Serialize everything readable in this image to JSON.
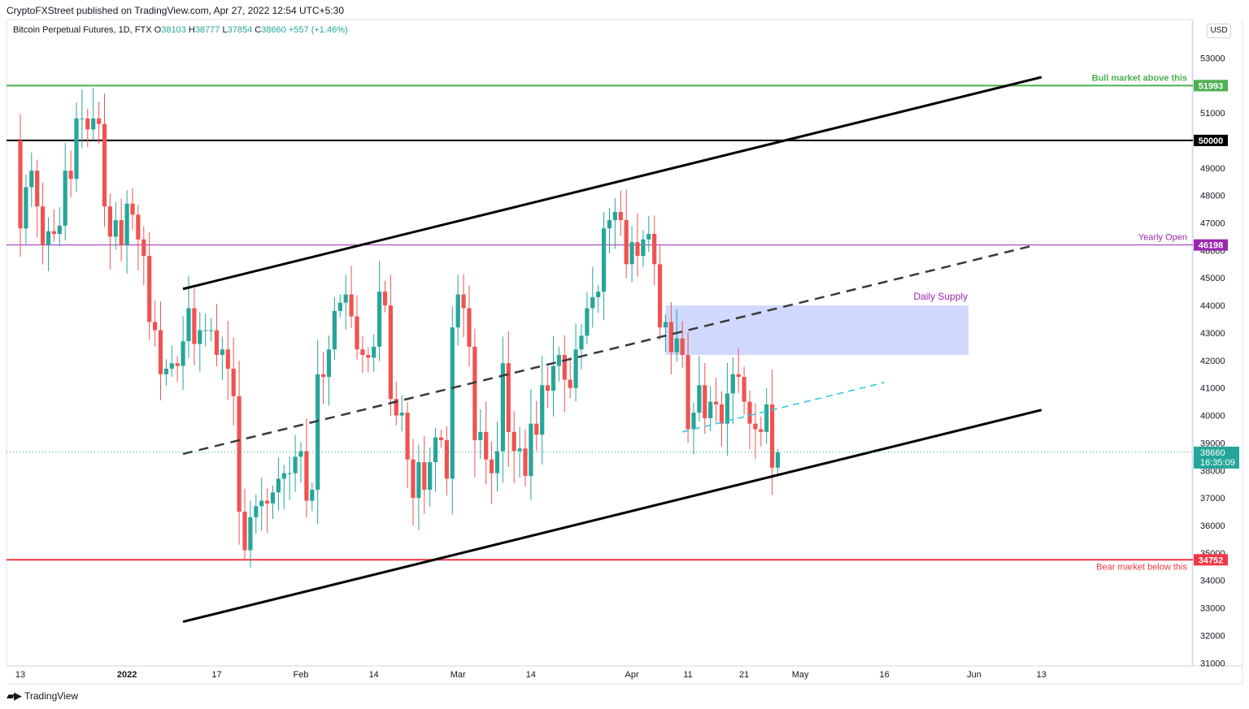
{
  "header": {
    "publisher": "CryptoFXStreet published on TradingView.com, Apr 27, 2022 12:54 UTC+5:30"
  },
  "legend": {
    "symbol": "Bitcoin Perpetual Futures, 1D, FTX",
    "open_label": "O",
    "open": "38103",
    "high_label": "H",
    "high": "38777",
    "low_label": "L",
    "low": "37854",
    "close_label": "C",
    "close": "38660",
    "change": "+557 (+1.46%)",
    "currency": "USD"
  },
  "footer": {
    "brand": "TradingView"
  },
  "colors": {
    "up": "#26a69a",
    "down": "#ef5350",
    "bull_line": "#4caf50",
    "bear_line": "#f23645",
    "yearly": "#9c27b0",
    "supply": "#c5cfff",
    "trend_dash": "#26c6da"
  },
  "chart_data": {
    "type": "candlestick",
    "ylim": [
      31000,
      54500
    ],
    "yticks": [
      31000,
      32000,
      33000,
      34000,
      35000,
      36000,
      37000,
      38000,
      39000,
      40000,
      41000,
      42000,
      43000,
      44000,
      45000,
      46000,
      47000,
      48000,
      49000,
      50000,
      51000,
      52000,
      53000
    ],
    "xticks": [
      {
        "label": "13",
        "date": "2021-12-13"
      },
      {
        "label": "2022",
        "date": "2022-01-01"
      },
      {
        "label": "17",
        "date": "2022-01-17"
      },
      {
        "label": "Feb",
        "date": "2022-02-01"
      },
      {
        "label": "14",
        "date": "2022-02-14"
      },
      {
        "label": "Mar",
        "date": "2022-03-01"
      },
      {
        "label": "14",
        "date": "2022-03-14"
      },
      {
        "label": "Apr",
        "date": "2022-04-01"
      },
      {
        "label": "11",
        "date": "2022-04-11"
      },
      {
        "label": "21",
        "date": "2022-04-21"
      },
      {
        "label": "May",
        "date": "2022-05-01"
      },
      {
        "label": "16",
        "date": "2022-05-16"
      },
      {
        "label": "Jun",
        "date": "2022-06-01"
      },
      {
        "label": "13",
        "date": "2022-06-13"
      }
    ],
    "close_anchors": [
      [
        "2021-12-12",
        50000
      ],
      [
        "2021-12-13",
        46800
      ],
      [
        "2021-12-14",
        48300
      ],
      [
        "2021-12-15",
        48900
      ],
      [
        "2021-12-16",
        47600
      ],
      [
        "2021-12-17",
        46200
      ],
      [
        "2021-12-18",
        46700
      ],
      [
        "2021-12-19",
        46600
      ],
      [
        "2021-12-20",
        46900
      ],
      [
        "2021-12-21",
        48900
      ],
      [
        "2021-12-22",
        48600
      ],
      [
        "2021-12-23",
        50800
      ],
      [
        "2021-12-24",
        50800
      ],
      [
        "2021-12-25",
        50400
      ],
      [
        "2021-12-26",
        50800
      ],
      [
        "2021-12-27",
        50600
      ],
      [
        "2021-12-28",
        47600
      ],
      [
        "2021-12-29",
        46500
      ],
      [
        "2021-12-30",
        47100
      ],
      [
        "2021-12-31",
        46200
      ],
      [
        "2022-01-01",
        47700
      ],
      [
        "2022-01-02",
        47300
      ],
      [
        "2022-01-03",
        46400
      ],
      [
        "2022-01-04",
        45800
      ],
      [
        "2022-01-05",
        43400
      ],
      [
        "2022-01-06",
        43100
      ],
      [
        "2022-01-07",
        41500
      ],
      [
        "2022-01-08",
        41700
      ],
      [
        "2022-01-09",
        41900
      ],
      [
        "2022-01-10",
        41800
      ],
      [
        "2022-01-11",
        42700
      ],
      [
        "2022-01-12",
        43900
      ],
      [
        "2022-01-13",
        42600
      ],
      [
        "2022-01-14",
        43100
      ],
      [
        "2022-01-15",
        43100
      ],
      [
        "2022-01-16",
        43100
      ],
      [
        "2022-01-17",
        42200
      ],
      [
        "2022-01-18",
        42400
      ],
      [
        "2022-01-19",
        41700
      ],
      [
        "2022-01-20",
        40700
      ],
      [
        "2022-01-21",
        36500
      ],
      [
        "2022-01-22",
        35100
      ],
      [
        "2022-01-23",
        36300
      ],
      [
        "2022-01-24",
        36700
      ],
      [
        "2022-01-25",
        36900
      ],
      [
        "2022-01-26",
        36800
      ],
      [
        "2022-01-27",
        37200
      ],
      [
        "2022-01-28",
        37700
      ],
      [
        "2022-01-29",
        37900
      ],
      [
        "2022-01-30",
        37900
      ],
      [
        "2022-01-31",
        38500
      ],
      [
        "2022-02-01",
        38700
      ],
      [
        "2022-02-02",
        36900
      ],
      [
        "2022-02-03",
        37300
      ],
      [
        "2022-02-04",
        41500
      ],
      [
        "2022-02-05",
        41400
      ],
      [
        "2022-02-06",
        42400
      ],
      [
        "2022-02-07",
        43800
      ],
      [
        "2022-02-08",
        44100
      ],
      [
        "2022-02-09",
        44400
      ],
      [
        "2022-02-10",
        43600
      ],
      [
        "2022-02-11",
        42400
      ],
      [
        "2022-02-12",
        42200
      ],
      [
        "2022-02-13",
        42100
      ],
      [
        "2022-02-14",
        42500
      ],
      [
        "2022-02-15",
        44500
      ],
      [
        "2022-02-16",
        44000
      ],
      [
        "2022-02-17",
        40600
      ],
      [
        "2022-02-18",
        40000
      ],
      [
        "2022-02-19",
        40100
      ],
      [
        "2022-02-20",
        38400
      ],
      [
        "2022-02-21",
        37000
      ],
      [
        "2022-02-22",
        38300
      ],
      [
        "2022-02-23",
        37300
      ],
      [
        "2022-02-24",
        38300
      ],
      [
        "2022-02-25",
        39200
      ],
      [
        "2022-02-26",
        39100
      ],
      [
        "2022-02-27",
        37700
      ],
      [
        "2022-02-28",
        43200
      ],
      [
        "2022-03-01",
        44400
      ],
      [
        "2022-03-02",
        43900
      ],
      [
        "2022-03-03",
        42500
      ],
      [
        "2022-03-04",
        39100
      ],
      [
        "2022-03-05",
        39400
      ],
      [
        "2022-03-06",
        38400
      ],
      [
        "2022-03-07",
        37900
      ],
      [
        "2022-03-08",
        38700
      ],
      [
        "2022-03-09",
        41900
      ],
      [
        "2022-03-10",
        39400
      ],
      [
        "2022-03-11",
        38700
      ],
      [
        "2022-03-12",
        38800
      ],
      [
        "2022-03-13",
        37800
      ],
      [
        "2022-03-14",
        39700
      ],
      [
        "2022-03-15",
        39300
      ],
      [
        "2022-03-16",
        41100
      ],
      [
        "2022-03-17",
        40900
      ],
      [
        "2022-03-18",
        41800
      ],
      [
        "2022-03-19",
        42200
      ],
      [
        "2022-03-20",
        41300
      ],
      [
        "2022-03-21",
        41000
      ],
      [
        "2022-03-22",
        42400
      ],
      [
        "2022-03-23",
        42900
      ],
      [
        "2022-03-24",
        43900
      ],
      [
        "2022-03-25",
        44300
      ],
      [
        "2022-03-26",
        44500
      ],
      [
        "2022-03-27",
        46800
      ],
      [
        "2022-03-28",
        47100
      ],
      [
        "2022-03-29",
        47400
      ],
      [
        "2022-03-30",
        47100
      ],
      [
        "2022-03-31",
        45500
      ],
      [
        "2022-04-01",
        46300
      ],
      [
        "2022-04-02",
        45800
      ],
      [
        "2022-04-03",
        46400
      ],
      [
        "2022-04-04",
        46600
      ],
      [
        "2022-04-05",
        45500
      ],
      [
        "2022-04-06",
        43200
      ],
      [
        "2022-04-07",
        43400
      ],
      [
        "2022-04-08",
        42300
      ],
      [
        "2022-04-09",
        42800
      ],
      [
        "2022-04-10",
        42200
      ],
      [
        "2022-04-11",
        39500
      ],
      [
        "2022-04-12",
        40100
      ],
      [
        "2022-04-13",
        41100
      ],
      [
        "2022-04-14",
        39900
      ],
      [
        "2022-04-15",
        40500
      ],
      [
        "2022-04-16",
        40400
      ],
      [
        "2022-04-17",
        39700
      ],
      [
        "2022-04-18",
        40800
      ],
      [
        "2022-04-19",
        41500
      ],
      [
        "2022-04-20",
        41400
      ],
      [
        "2022-04-21",
        40500
      ],
      [
        "2022-04-22",
        39700
      ],
      [
        "2022-04-23",
        39500
      ],
      [
        "2022-04-24",
        39400
      ],
      [
        "2022-04-25",
        40400
      ],
      [
        "2022-04-26",
        38100
      ],
      [
        "2022-04-27",
        38660
      ]
    ],
    "last_candle": {
      "date": "2022-04-27",
      "open": 38103,
      "high": 38777,
      "low": 37854,
      "close": 38660
    },
    "horizontal_levels": [
      {
        "value": 51993,
        "label": "51993",
        "note": "Bull market above this",
        "color": "#4caf50"
      },
      {
        "value": 50000,
        "label": "50000",
        "color": "#000000"
      },
      {
        "value": 46198,
        "label": "46198",
        "note": "Yearly Open",
        "color": "#9c27b0"
      },
      {
        "value": 34752,
        "label": "34752",
        "note": "Bear market below this",
        "color": "#f23645"
      }
    ],
    "zone": {
      "label": "Daily Supply",
      "from": "2022-04-07",
      "to": "2022-05-31",
      "low": 42200,
      "high": 44000
    },
    "trendlines": [
      {
        "kind": "channel-upper",
        "from": [
          "2022-01-11",
          44600
        ],
        "to": [
          "2022-06-13",
          52300
        ],
        "style": "solid"
      },
      {
        "kind": "channel-mid",
        "from": [
          "2022-01-11",
          38600
        ],
        "to": [
          "2022-06-12",
          46200
        ],
        "style": "dashed"
      },
      {
        "kind": "channel-lower",
        "from": [
          "2022-01-11",
          32500
        ],
        "to": [
          "2022-06-13",
          40200
        ],
        "style": "solid"
      },
      {
        "kind": "minor-trend",
        "from": [
          "2022-04-10",
          39400
        ],
        "to": [
          "2022-05-16",
          41200
        ],
        "style": "dashed"
      }
    ],
    "price_label": {
      "value": "38660",
      "timer": "16:35:09"
    },
    "text": {
      "daily_supply": "Daily Supply"
    }
  }
}
